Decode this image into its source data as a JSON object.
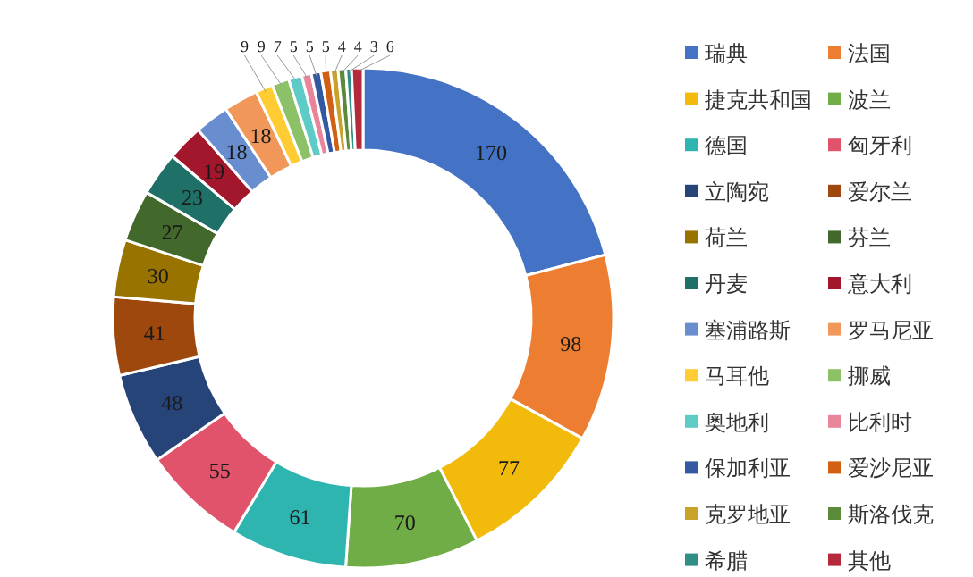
{
  "chart_data": {
    "type": "donut",
    "categories": [
      "瑞典",
      "法国",
      "捷克共和国",
      "波兰",
      "德国",
      "匈牙利",
      "立陶宛",
      "爱尔兰",
      "荷兰",
      "芬兰",
      "丹麦",
      "意大利",
      "塞浦路斯",
      "罗马尼亚",
      "马耳他",
      "挪威",
      "奥地利",
      "比利时",
      "保加利亚",
      "爱沙尼亚",
      "克罗地亚",
      "斯洛伐克",
      "希腊",
      "其他"
    ],
    "values": [
      170,
      98,
      77,
      70,
      61,
      55,
      48,
      41,
      30,
      27,
      23,
      19,
      18,
      18,
      9,
      9,
      7,
      5,
      5,
      5,
      4,
      4,
      3,
      6
    ],
    "colors": [
      "#4472c4",
      "#ed7d31",
      "#f2bb0c",
      "#70ad47",
      "#2fb5b0",
      "#e0536a",
      "#264478",
      "#9e480e",
      "#997300",
      "#43682b",
      "#1f7066",
      "#a3172d",
      "#698ed0",
      "#f1975a",
      "#ffcd33",
      "#8cc168",
      "#5fcbc7",
      "#e8859a",
      "#335aa1",
      "#d26012",
      "#c9a22a",
      "#5a8a3a",
      "#2e8f86",
      "#b52a3a"
    ],
    "data_labels": true,
    "legend": "right"
  }
}
